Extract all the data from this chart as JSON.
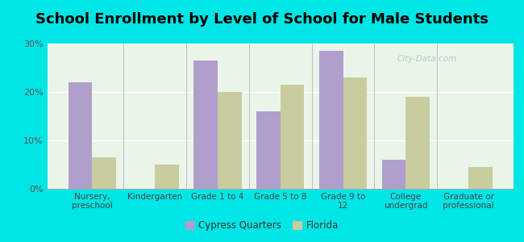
{
  "title": "School Enrollment by Level of School for Male Students",
  "categories": [
    "Nursery,\npreschool",
    "Kindergarten",
    "Grade 1 to 4",
    "Grade 5 to 8",
    "Grade 9 to\n12",
    "College\nundergrad",
    "Graduate or\nprofessional"
  ],
  "cypress_quarters": [
    22,
    0,
    26.5,
    16,
    28.5,
    6,
    0
  ],
  "florida": [
    6.5,
    5,
    20,
    21.5,
    23,
    19,
    4.5
  ],
  "cypress_color": "#b09fcc",
  "florida_color": "#c8cc9f",
  "background_outer": "#00e5e5",
  "background_inner": "#eaf5ea",
  "ylabel_ticks": [
    "0%",
    "10%",
    "20%",
    "30%"
  ],
  "ytick_vals": [
    0,
    10,
    20,
    30
  ],
  "ylim": [
    0,
    30
  ],
  "title_fontsize": 13,
  "legend_labels": [
    "Cypress Quarters",
    "Florida"
  ],
  "bar_width": 0.38
}
